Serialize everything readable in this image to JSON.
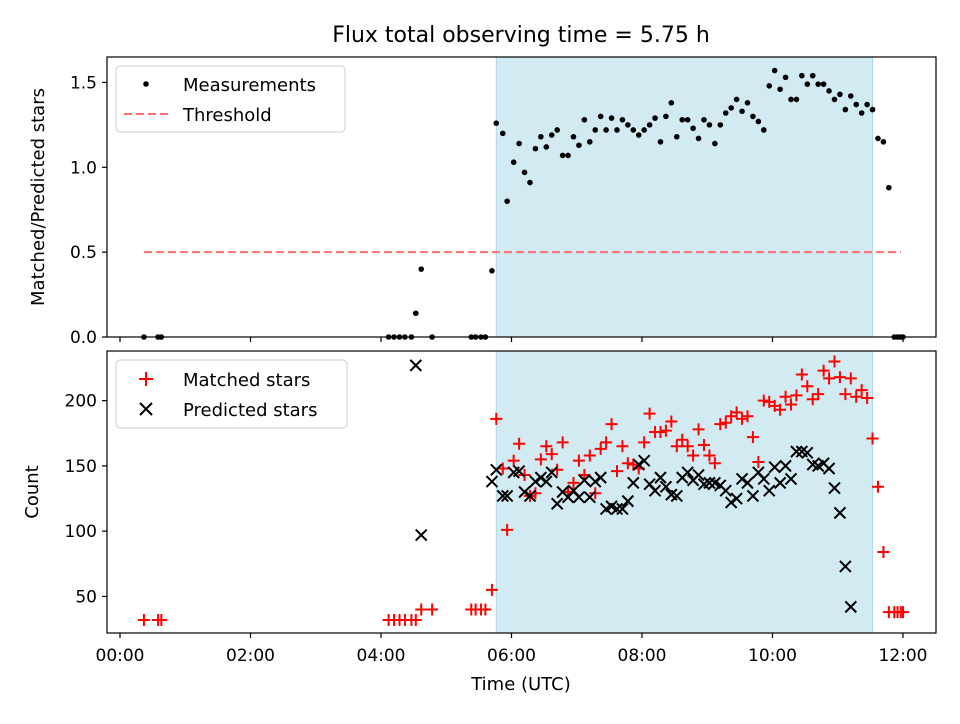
{
  "title": "Flux total observing time = 5.75 h",
  "xlabel": "Time (UTC)",
  "colors": {
    "shade": "#add8e6",
    "threshold": "#ff6f6f",
    "matched": "#ff0000",
    "predicted": "#000000",
    "measurements": "#000000"
  },
  "chart_data": [
    {
      "type": "scatter",
      "ylabel": "Matched/Predicted stars",
      "xlim": [
        "00:00",
        "12:00"
      ],
      "ylim": [
        0,
        1.65
      ],
      "yticks": [
        "0.0",
        "0.5",
        "1.0",
        "1.5"
      ],
      "legend_position": "upper-left",
      "shaded_span": [
        "05:46",
        "11:32"
      ],
      "threshold": {
        "name": "Threshold",
        "y": 0.5,
        "x_range": [
          "00:22",
          "11:58"
        ]
      },
      "series": [
        {
          "name": "Measurements",
          "points": [
            [
              "00:22",
              0
            ],
            [
              "00:35",
              0
            ],
            [
              "00:38",
              0
            ],
            [
              "04:07",
              0
            ],
            [
              "04:12",
              0
            ],
            [
              "04:17",
              0
            ],
            [
              "04:22",
              0
            ],
            [
              "04:28",
              0
            ],
            [
              "04:32",
              0.14
            ],
            [
              "04:37",
              0.4
            ],
            [
              "04:47",
              0
            ],
            [
              "05:23",
              0
            ],
            [
              "05:27",
              0
            ],
            [
              "05:32",
              0
            ],
            [
              "05:36",
              0
            ],
            [
              "05:42",
              0.39
            ],
            [
              "05:46",
              1.26
            ],
            [
              "05:52",
              1.2
            ],
            [
              "05:56",
              0.8
            ],
            [
              "06:02",
              1.03
            ],
            [
              "06:07",
              1.14
            ],
            [
              "06:12",
              0.97
            ],
            [
              "06:17",
              0.91
            ],
            [
              "06:22",
              1.11
            ],
            [
              "06:27",
              1.18
            ],
            [
              "06:32",
              1.12
            ],
            [
              "06:37",
              1.19
            ],
            [
              "06:42",
              1.22
            ],
            [
              "06:47",
              1.07
            ],
            [
              "06:52",
              1.07
            ],
            [
              "06:57",
              1.18
            ],
            [
              "07:02",
              1.13
            ],
            [
              "07:07",
              1.28
            ],
            [
              "07:12",
              1.15
            ],
            [
              "07:17",
              1.22
            ],
            [
              "07:22",
              1.3
            ],
            [
              "07:27",
              1.22
            ],
            [
              "07:32",
              1.29
            ],
            [
              "07:37",
              1.22
            ],
            [
              "07:42",
              1.28
            ],
            [
              "07:47",
              1.25
            ],
            [
              "07:52",
              1.22
            ],
            [
              "07:57",
              1.19
            ],
            [
              "08:02",
              1.22
            ],
            [
              "08:07",
              1.25
            ],
            [
              "08:12",
              1.29
            ],
            [
              "08:17",
              1.15
            ],
            [
              "08:22",
              1.3
            ],
            [
              "08:27",
              1.38
            ],
            [
              "08:32",
              1.18
            ],
            [
              "08:37",
              1.28
            ],
            [
              "08:42",
              1.28
            ],
            [
              "08:47",
              1.23
            ],
            [
              "08:52",
              1.17
            ],
            [
              "08:57",
              1.28
            ],
            [
              "09:02",
              1.25
            ],
            [
              "09:07",
              1.14
            ],
            [
              "09:12",
              1.25
            ],
            [
              "09:17",
              1.32
            ],
            [
              "09:22",
              1.35
            ],
            [
              "09:27",
              1.4
            ],
            [
              "09:32",
              1.33
            ],
            [
              "09:37",
              1.38
            ],
            [
              "09:42",
              1.3
            ],
            [
              "09:47",
              1.27
            ],
            [
              "09:52",
              1.22
            ],
            [
              "09:57",
              1.48
            ],
            [
              "10:02",
              1.57
            ],
            [
              "10:07",
              1.46
            ],
            [
              "10:12",
              1.53
            ],
            [
              "10:17",
              1.4
            ],
            [
              "10:22",
              1.4
            ],
            [
              "10:27",
              1.54
            ],
            [
              "10:32",
              1.49
            ],
            [
              "10:37",
              1.54
            ],
            [
              "10:42",
              1.49
            ],
            [
              "10:47",
              1.49
            ],
            [
              "10:52",
              1.45
            ],
            [
              "10:57",
              1.4
            ],
            [
              "11:02",
              1.43
            ],
            [
              "11:07",
              1.34
            ],
            [
              "11:12",
              1.42
            ],
            [
              "11:17",
              1.37
            ],
            [
              "11:22",
              1.32
            ],
            [
              "11:27",
              1.37
            ],
            [
              "11:32",
              1.34
            ],
            [
              "11:37",
              1.17
            ],
            [
              "11:42",
              1.15
            ],
            [
              "11:47",
              0.88
            ],
            [
              "11:52",
              0
            ],
            [
              "11:55",
              0
            ],
            [
              "11:58",
              0
            ],
            [
              "12:00",
              0
            ]
          ]
        }
      ]
    },
    {
      "type": "scatter",
      "ylabel": "Count",
      "xlabel": "Time (UTC)",
      "xlim": [
        "00:00",
        "12:00"
      ],
      "ylim": [
        22,
        238
      ],
      "yticks": [
        "50",
        "100",
        "150",
        "200"
      ],
      "xticks": [
        "00:00",
        "02:00",
        "04:00",
        "06:00",
        "08:00",
        "10:00",
        "12:00"
      ],
      "legend_position": "upper-left",
      "shaded_span": [
        "05:46",
        "11:32"
      ],
      "series": [
        {
          "name": "Matched stars",
          "marker": "+",
          "points": [
            [
              "00:22",
              32
            ],
            [
              "00:35",
              32
            ],
            [
              "00:38",
              32
            ],
            [
              "04:07",
              32
            ],
            [
              "04:12",
              32
            ],
            [
              "04:17",
              32
            ],
            [
              "04:22",
              32
            ],
            [
              "04:28",
              32
            ],
            [
              "04:32",
              32
            ],
            [
              "04:37",
              40
            ],
            [
              "04:47",
              40
            ],
            [
              "05:23",
              40
            ],
            [
              "05:27",
              40
            ],
            [
              "05:32",
              40
            ],
            [
              "05:36",
              40
            ],
            [
              "05:42",
              55
            ],
            [
              "05:46",
              186
            ],
            [
              "05:52",
              148
            ],
            [
              "05:56",
              101
            ],
            [
              "06:02",
              154
            ],
            [
              "06:07",
              167
            ],
            [
              "06:12",
              143
            ],
            [
              "06:17",
              127
            ],
            [
              "06:22",
              129
            ],
            [
              "06:27",
              155
            ],
            [
              "06:32",
              165
            ],
            [
              "06:37",
              159
            ],
            [
              "06:42",
              147
            ],
            [
              "06:47",
              168
            ],
            [
              "06:52",
              130
            ],
            [
              "06:57",
              137
            ],
            [
              "07:02",
              154
            ],
            [
              "07:07",
              143
            ],
            [
              "07:12",
              158
            ],
            [
              "07:17",
              129
            ],
            [
              "07:22",
              163
            ],
            [
              "07:27",
              168
            ],
            [
              "07:32",
              182
            ],
            [
              "07:37",
              146
            ],
            [
              "07:42",
              165
            ],
            [
              "07:47",
              152
            ],
            [
              "07:52",
              151
            ],
            [
              "07:57",
              148
            ],
            [
              "08:02",
              168
            ],
            [
              "08:07",
              190
            ],
            [
              "08:12",
              176
            ],
            [
              "08:17",
              176
            ],
            [
              "08:22",
              177
            ],
            [
              "08:27",
              184
            ],
            [
              "08:32",
              165
            ],
            [
              "08:37",
              170
            ],
            [
              "08:42",
              165
            ],
            [
              "08:47",
              158
            ],
            [
              "08:52",
              178
            ],
            [
              "08:57",
              166
            ],
            [
              "09:02",
              158
            ],
            [
              "09:07",
              152
            ],
            [
              "09:12",
              182
            ],
            [
              "09:17",
              183
            ],
            [
              "09:22",
              188
            ],
            [
              "09:27",
              191
            ],
            [
              "09:32",
              186
            ],
            [
              "09:37",
              188
            ],
            [
              "09:42",
              172
            ],
            [
              "09:47",
              153
            ],
            [
              "09:52",
              200
            ],
            [
              "09:57",
              199
            ],
            [
              "10:02",
              196
            ],
            [
              "10:07",
              193
            ],
            [
              "10:12",
              203
            ],
            [
              "10:17",
              197
            ],
            [
              "10:22",
              204
            ],
            [
              "10:27",
              220
            ],
            [
              "10:32",
              211
            ],
            [
              "10:37",
              201
            ],
            [
              "10:42",
              205
            ],
            [
              "10:47",
              223
            ],
            [
              "10:52",
              217
            ],
            [
              "10:57",
              230
            ],
            [
              "11:02",
              218
            ],
            [
              "11:07",
              205
            ],
            [
              "11:12",
              217
            ],
            [
              "11:17",
              203
            ],
            [
              "11:22",
              208
            ],
            [
              "11:27",
              202
            ],
            [
              "11:32",
              171
            ],
            [
              "11:37",
              134
            ],
            [
              "11:42",
              84
            ],
            [
              "11:47",
              38
            ],
            [
              "11:52",
              38
            ],
            [
              "11:55",
              38
            ],
            [
              "11:58",
              38
            ],
            [
              "12:00",
              38
            ]
          ]
        },
        {
          "name": "Predicted stars",
          "marker": "x",
          "points": [
            [
              "04:32",
              227
            ],
            [
              "04:37",
              97
            ],
            [
              "05:42",
              138
            ],
            [
              "05:46",
              147
            ],
            [
              "05:52",
              127
            ],
            [
              "05:56",
              127
            ],
            [
              "06:02",
              145
            ],
            [
              "06:07",
              146
            ],
            [
              "06:12",
              130
            ],
            [
              "06:17",
              127
            ],
            [
              "06:22",
              138
            ],
            [
              "06:27",
              141
            ],
            [
              "06:32",
              138
            ],
            [
              "06:37",
              145
            ],
            [
              "06:42",
              121
            ],
            [
              "06:47",
              130
            ],
            [
              "06:52",
              126
            ],
            [
              "06:57",
              131
            ],
            [
              "07:02",
              126
            ],
            [
              "07:07",
              139
            ],
            [
              "07:12",
              126
            ],
            [
              "07:17",
              138
            ],
            [
              "07:22",
              141
            ],
            [
              "07:27",
              117
            ],
            [
              "07:32",
              119
            ],
            [
              "07:37",
              117
            ],
            [
              "07:42",
              117
            ],
            [
              "07:47",
              123
            ],
            [
              "07:52",
              137
            ],
            [
              "07:57",
              151
            ],
            [
              "08:02",
              154
            ],
            [
              "08:07",
              136
            ],
            [
              "08:12",
              131
            ],
            [
              "08:17",
              141
            ],
            [
              "08:22",
              134
            ],
            [
              "08:27",
              128
            ],
            [
              "08:32",
              127
            ],
            [
              "08:37",
              141
            ],
            [
              "08:42",
              145
            ],
            [
              "08:47",
              139
            ],
            [
              "08:52",
              143
            ],
            [
              "08:57",
              136
            ],
            [
              "09:02",
              137
            ],
            [
              "09:07",
              137
            ],
            [
              "09:12",
              135
            ],
            [
              "09:17",
              131
            ],
            [
              "09:22",
              122
            ],
            [
              "09:27",
              125
            ],
            [
              "09:32",
              140
            ],
            [
              "09:37",
              137
            ],
            [
              "09:42",
              127
            ],
            [
              "09:47",
              145
            ],
            [
              "09:52",
              140
            ],
            [
              "09:57",
              131
            ],
            [
              "10:02",
              149
            ],
            [
              "10:07",
              137
            ],
            [
              "10:12",
              150
            ],
            [
              "10:17",
              140
            ],
            [
              "10:22",
              161
            ],
            [
              "10:27",
              161
            ],
            [
              "10:32",
              160
            ],
            [
              "10:37",
              151
            ],
            [
              "10:42",
              150
            ],
            [
              "10:47",
              152
            ],
            [
              "10:52",
              148
            ],
            [
              "10:57",
              133
            ],
            [
              "11:02",
              114
            ],
            [
              "11:07",
              73
            ],
            [
              "11:12",
              42
            ]
          ]
        }
      ]
    }
  ]
}
